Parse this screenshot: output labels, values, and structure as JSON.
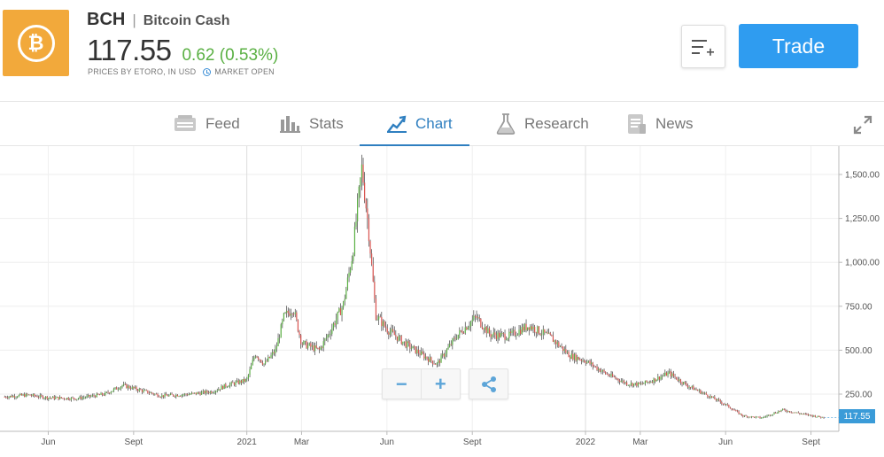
{
  "instrument": {
    "ticker": "BCH",
    "separator": "|",
    "name": "Bitcoin Cash",
    "price": "117.55",
    "change": "0.62 (0.53%)",
    "source": "PRICES BY ETORO, IN USD",
    "market_status": "MARKET OPEN",
    "logo_glyph": "₿",
    "logo_color": "#f2a93b"
  },
  "actions": {
    "watchlist_icon": "add-to-list-icon",
    "trade_label": "Trade",
    "trade_color": "#2f9cf0"
  },
  "tabs": [
    {
      "label": "Feed",
      "icon": "feed-icon"
    },
    {
      "label": "Stats",
      "icon": "stats-icon"
    },
    {
      "label": "Chart",
      "icon": "chart-icon",
      "active": true
    },
    {
      "label": "Research",
      "icon": "research-icon"
    },
    {
      "label": "News",
      "icon": "news-icon"
    }
  ],
  "chart_controls": {
    "zoom_out": "−",
    "zoom_in": "+",
    "share_icon": "share-icon"
  },
  "chart_data": {
    "type": "line",
    "title": "",
    "xlabel": "",
    "ylabel": "",
    "ylim": [
      0,
      1650
    ],
    "yticks": [
      250,
      500,
      750,
      1000,
      1250,
      1500
    ],
    "ytick_labels": [
      "250.00",
      "500.00",
      "750.00",
      "1,000.00",
      "1,250.00",
      "1,500.00"
    ],
    "xtick_labels": [
      "Jun",
      "Sept",
      "2021",
      "Mar",
      "Jun",
      "Sept",
      "2022",
      "Mar",
      "Jun",
      "Sept"
    ],
    "xtick_dates": [
      "2020-06-01",
      "2020-09-01",
      "2021-01-01",
      "2021-03-01",
      "2021-06-01",
      "2021-09-01",
      "2022-01-01",
      "2022-03-01",
      "2022-06-01",
      "2022-09-01"
    ],
    "up_color": "#5ab043",
    "down_color": "#d9534f",
    "last_price_label": "117.55",
    "series": [
      {
        "x": [
          "2020-04-15",
          "2020-05-10",
          "2020-06-01",
          "2020-07-01",
          "2020-08-01",
          "2020-08-20",
          "2020-09-10",
          "2020-10-01",
          "2020-11-01",
          "2020-11-25",
          "2020-12-10",
          "2021-01-01",
          "2021-01-10",
          "2021-01-20",
          "2021-02-01",
          "2021-02-10",
          "2021-02-20",
          "2021-03-01",
          "2021-03-20",
          "2021-04-01",
          "2021-04-15",
          "2021-04-25",
          "2021-05-05",
          "2021-05-12",
          "2021-05-20",
          "2021-06-01",
          "2021-06-20",
          "2021-07-10",
          "2021-07-25",
          "2021-08-15",
          "2021-09-05",
          "2021-09-20",
          "2021-10-10",
          "2021-11-01",
          "2021-11-25",
          "2021-12-15",
          "2022-01-01",
          "2022-01-25",
          "2022-02-15",
          "2022-03-01",
          "2022-03-15",
          "2022-04-01",
          "2022-04-20",
          "2022-05-10",
          "2022-06-01",
          "2022-06-20",
          "2022-07-10",
          "2022-08-01",
          "2022-08-20",
          "2022-09-10",
          "2022-09-15"
        ],
        "values": [
          235,
          245,
          230,
          225,
          250,
          300,
          270,
          240,
          250,
          265,
          300,
          330,
          480,
          420,
          500,
          690,
          740,
          540,
          500,
          610,
          760,
          1050,
          1540,
          1200,
          700,
          620,
          540,
          470,
          420,
          580,
          690,
          590,
          580,
          640,
          570,
          470,
          440,
          360,
          310,
          305,
          330,
          370,
          300,
          250,
          190,
          125,
          115,
          160,
          140,
          120,
          117.55
        ]
      }
    ]
  }
}
